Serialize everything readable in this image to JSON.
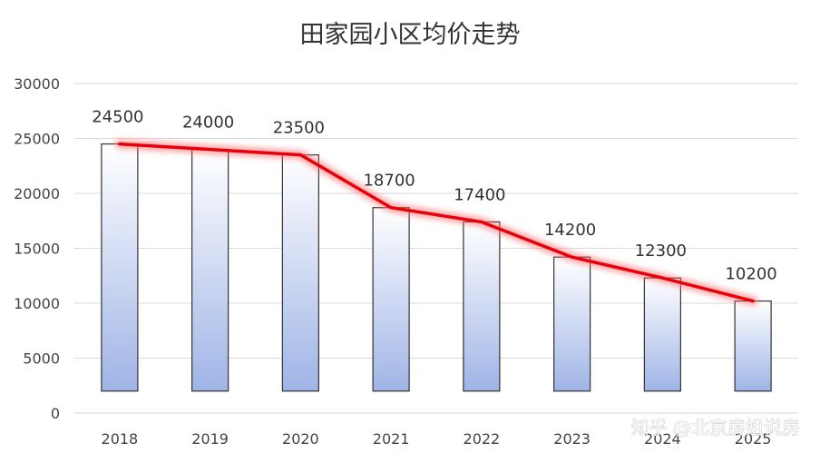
{
  "watermark": "知乎 @北京房姐说房",
  "colors": {
    "line": "#e8000b",
    "glow": "#ff6b6b",
    "bar_top": "#ffffff",
    "bar_bottom": "#9fb4e6",
    "bar_stroke": "#333333",
    "grid": "#d9d9d9"
  },
  "chart_data": {
    "type": "bar",
    "title": "田家园小区均价走势",
    "categories": [
      "2018",
      "2019",
      "2020",
      "2021",
      "2022",
      "2023",
      "2024",
      "2025"
    ],
    "values": [
      24500,
      24000,
      23500,
      18700,
      17400,
      14200,
      12300,
      10200
    ],
    "data_labels": [
      "24500",
      "24000",
      "23500",
      "18700",
      "17400",
      "14200",
      "12300",
      "10200"
    ],
    "ylim": [
      0,
      30000
    ],
    "yticks": [
      "0",
      "5000",
      "10000",
      "15000",
      "20000",
      "25000",
      "30000"
    ],
    "xlabel": "",
    "ylabel": "",
    "grid": true,
    "legend": "none",
    "overlay": "trend line through bar tops"
  }
}
